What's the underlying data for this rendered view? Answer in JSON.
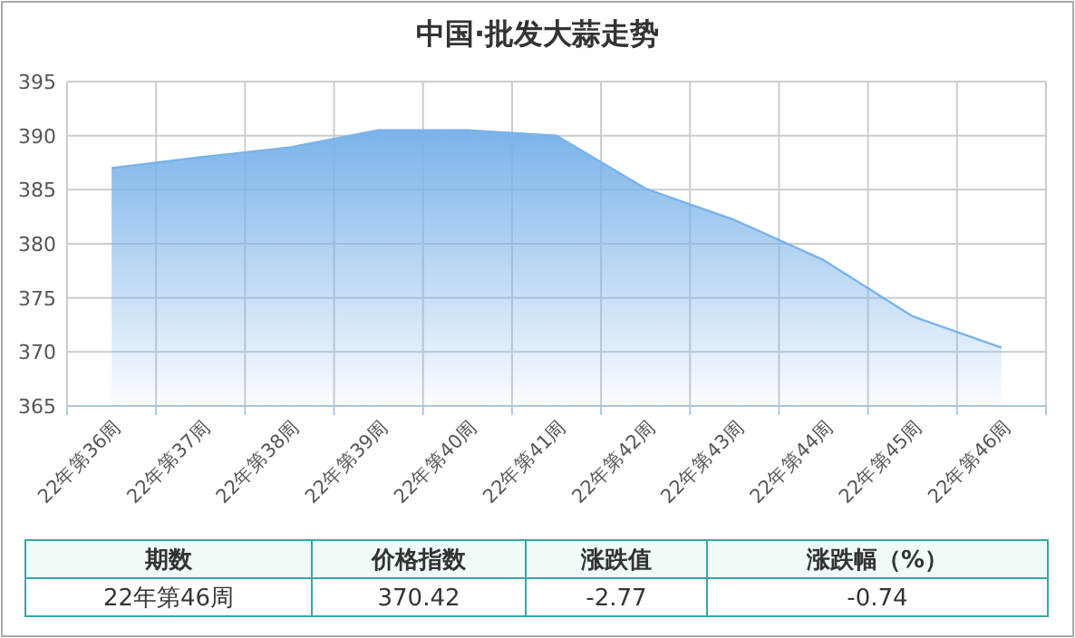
{
  "chart_data": {
    "type": "area",
    "title": "中国·批发大蒜走势",
    "categories": [
      "22年第36周",
      "22年第37周",
      "22年第38周",
      "22年第39周",
      "22年第40周",
      "22年第41周",
      "22年第42周",
      "22年第43周",
      "22年第44周",
      "22年第45周",
      "22年第46周"
    ],
    "series": [
      {
        "color": "#7ab3ea",
        "values": [
          387.0,
          388.0,
          388.9,
          390.5,
          390.5,
          390.0,
          385.1,
          382.2,
          378.5,
          373.3,
          370.4
        ]
      }
    ],
    "ylim": [
      365,
      395
    ],
    "yticks": [
      365,
      370,
      375,
      380,
      385,
      390,
      395
    ],
    "grid": true,
    "annotations": [
      "期数",
      "价格指数",
      "涨跌值",
      "涨跌幅（%）",
      "22年第46周",
      "370.42",
      "-2.77",
      "-0.74"
    ]
  }
}
